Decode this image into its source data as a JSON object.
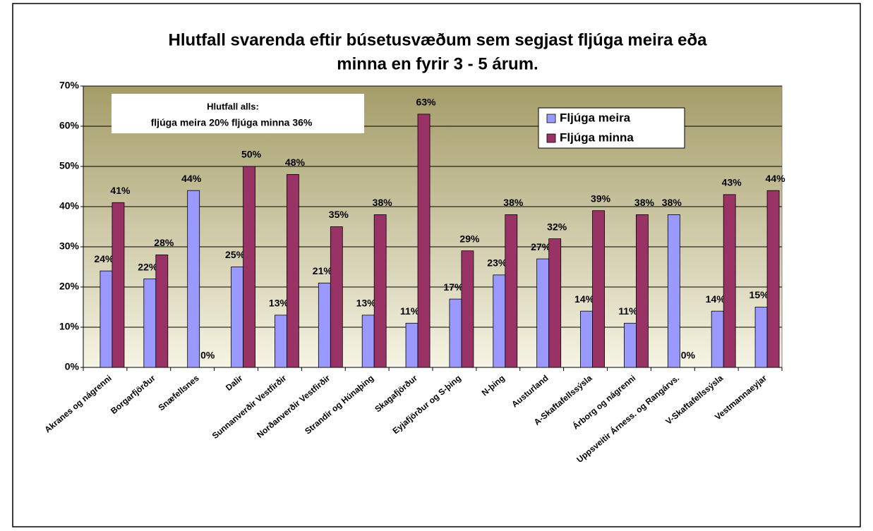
{
  "chart_data": {
    "type": "bar",
    "title": [
      "Hlutfall svarenda eftir búsetusvæðum sem segjast fljúga meira eða",
      "minna en fyrir 3 - 5 árum."
    ],
    "annotation": [
      "Hlutfall alls:",
      "fljúga meira 20%   fljúga minna 36%"
    ],
    "categories": [
      "Akranes og nágrenni",
      "Borgarfjörður",
      "Snæfellsnes",
      "Dalir",
      "Sunnanverðir Vestfirðir",
      "Norðanverðir Vestfirðir",
      "Strandir og Húnaþing",
      "Skagafjörður",
      "Eyjafjörður og S-þing",
      "N-þing",
      "Austurland",
      "A-Skaftafellssýsla",
      "Árborg og nágrenni",
      "Uppsveitir Árness. og Rangárvs.",
      "V-Skaftafellssýsla",
      "Vestmannaeyjar"
    ],
    "series": [
      {
        "name": "Fljúga meira",
        "color": "#9999ff",
        "values": [
          24,
          22,
          44,
          25,
          13,
          21,
          13,
          11,
          17,
          23,
          27,
          14,
          11,
          38,
          14,
          15
        ],
        "value_labels": [
          "24%",
          "22%",
          "44%",
          "25%",
          "13%",
          "21%",
          "13%",
          "11%",
          "17%",
          "23%",
          "27%",
          "14%",
          "11%",
          "38%",
          "14%",
          "15%"
        ]
      },
      {
        "name": "Fljúga minna",
        "color": "#993366",
        "values": [
          41,
          28,
          0,
          50,
          48,
          35,
          38,
          63,
          29,
          38,
          32,
          39,
          38,
          0,
          43,
          44
        ],
        "value_labels": [
          "41%",
          "28%",
          "0%",
          "50%",
          "48%",
          "35%",
          "38%",
          "63%",
          "29%",
          "38%",
          "32%",
          "39%",
          "38%",
          "0%",
          "43%",
          "44%"
        ]
      }
    ],
    "ylim": [
      0,
      70
    ],
    "yticks": [
      {
        "value": 0,
        "label": "0%"
      },
      {
        "value": 10,
        "label": "10%"
      },
      {
        "value": 20,
        "label": "20%"
      },
      {
        "value": 30,
        "label": "30%"
      },
      {
        "value": 40,
        "label": "40%"
      },
      {
        "value": 50,
        "label": "50%"
      },
      {
        "value": 60,
        "label": "60%"
      },
      {
        "value": 70,
        "label": "70%"
      }
    ],
    "grid": true
  }
}
